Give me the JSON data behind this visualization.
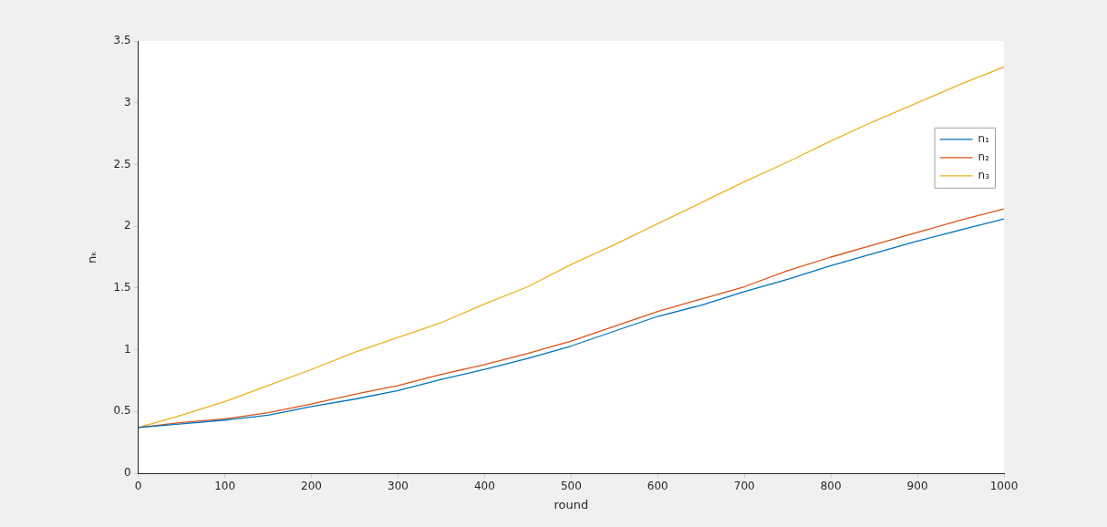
{
  "chart_data": {
    "type": "line",
    "xlabel": "round",
    "ylabel": "nₖ",
    "x": [
      0,
      50,
      100,
      150,
      200,
      250,
      300,
      350,
      400,
      450,
      500,
      550,
      600,
      650,
      700,
      750,
      800,
      850,
      900,
      950,
      1000
    ],
    "series": [
      {
        "name": "n₁",
        "color": "#0072bd",
        "values": [
          0.37,
          0.4,
          0.43,
          0.47,
          0.54,
          0.6,
          0.67,
          0.76,
          0.84,
          0.93,
          1.03,
          1.15,
          1.27,
          1.36,
          1.47,
          1.57,
          1.68,
          1.78,
          1.88,
          1.97,
          2.06
        ]
      },
      {
        "name": "n₂",
        "color": "#d95319",
        "values": [
          0.37,
          0.41,
          0.44,
          0.49,
          0.56,
          0.64,
          0.71,
          0.8,
          0.88,
          0.97,
          1.07,
          1.19,
          1.31,
          1.41,
          1.51,
          1.64,
          1.75,
          1.85,
          1.95,
          2.05,
          2.14
        ]
      },
      {
        "name": "n₃",
        "color": "#edb120",
        "values": [
          0.37,
          0.47,
          0.58,
          0.71,
          0.84,
          0.98,
          1.1,
          1.22,
          1.37,
          1.51,
          1.69,
          1.85,
          2.02,
          2.19,
          2.36,
          2.52,
          2.69,
          2.85,
          3.0,
          3.15,
          3.29
        ]
      }
    ],
    "xlim": [
      0,
      1000
    ],
    "xticks": [
      0,
      100,
      200,
      300,
      400,
      500,
      600,
      700,
      800,
      900,
      1000
    ],
    "ylim": [
      0,
      3.5
    ],
    "yticks": [
      0,
      0.5,
      1,
      1.5,
      2,
      2.5,
      3,
      3.5
    ],
    "legend": "right",
    "grid": false,
    "marker": "none",
    "line_style": "solid"
  }
}
